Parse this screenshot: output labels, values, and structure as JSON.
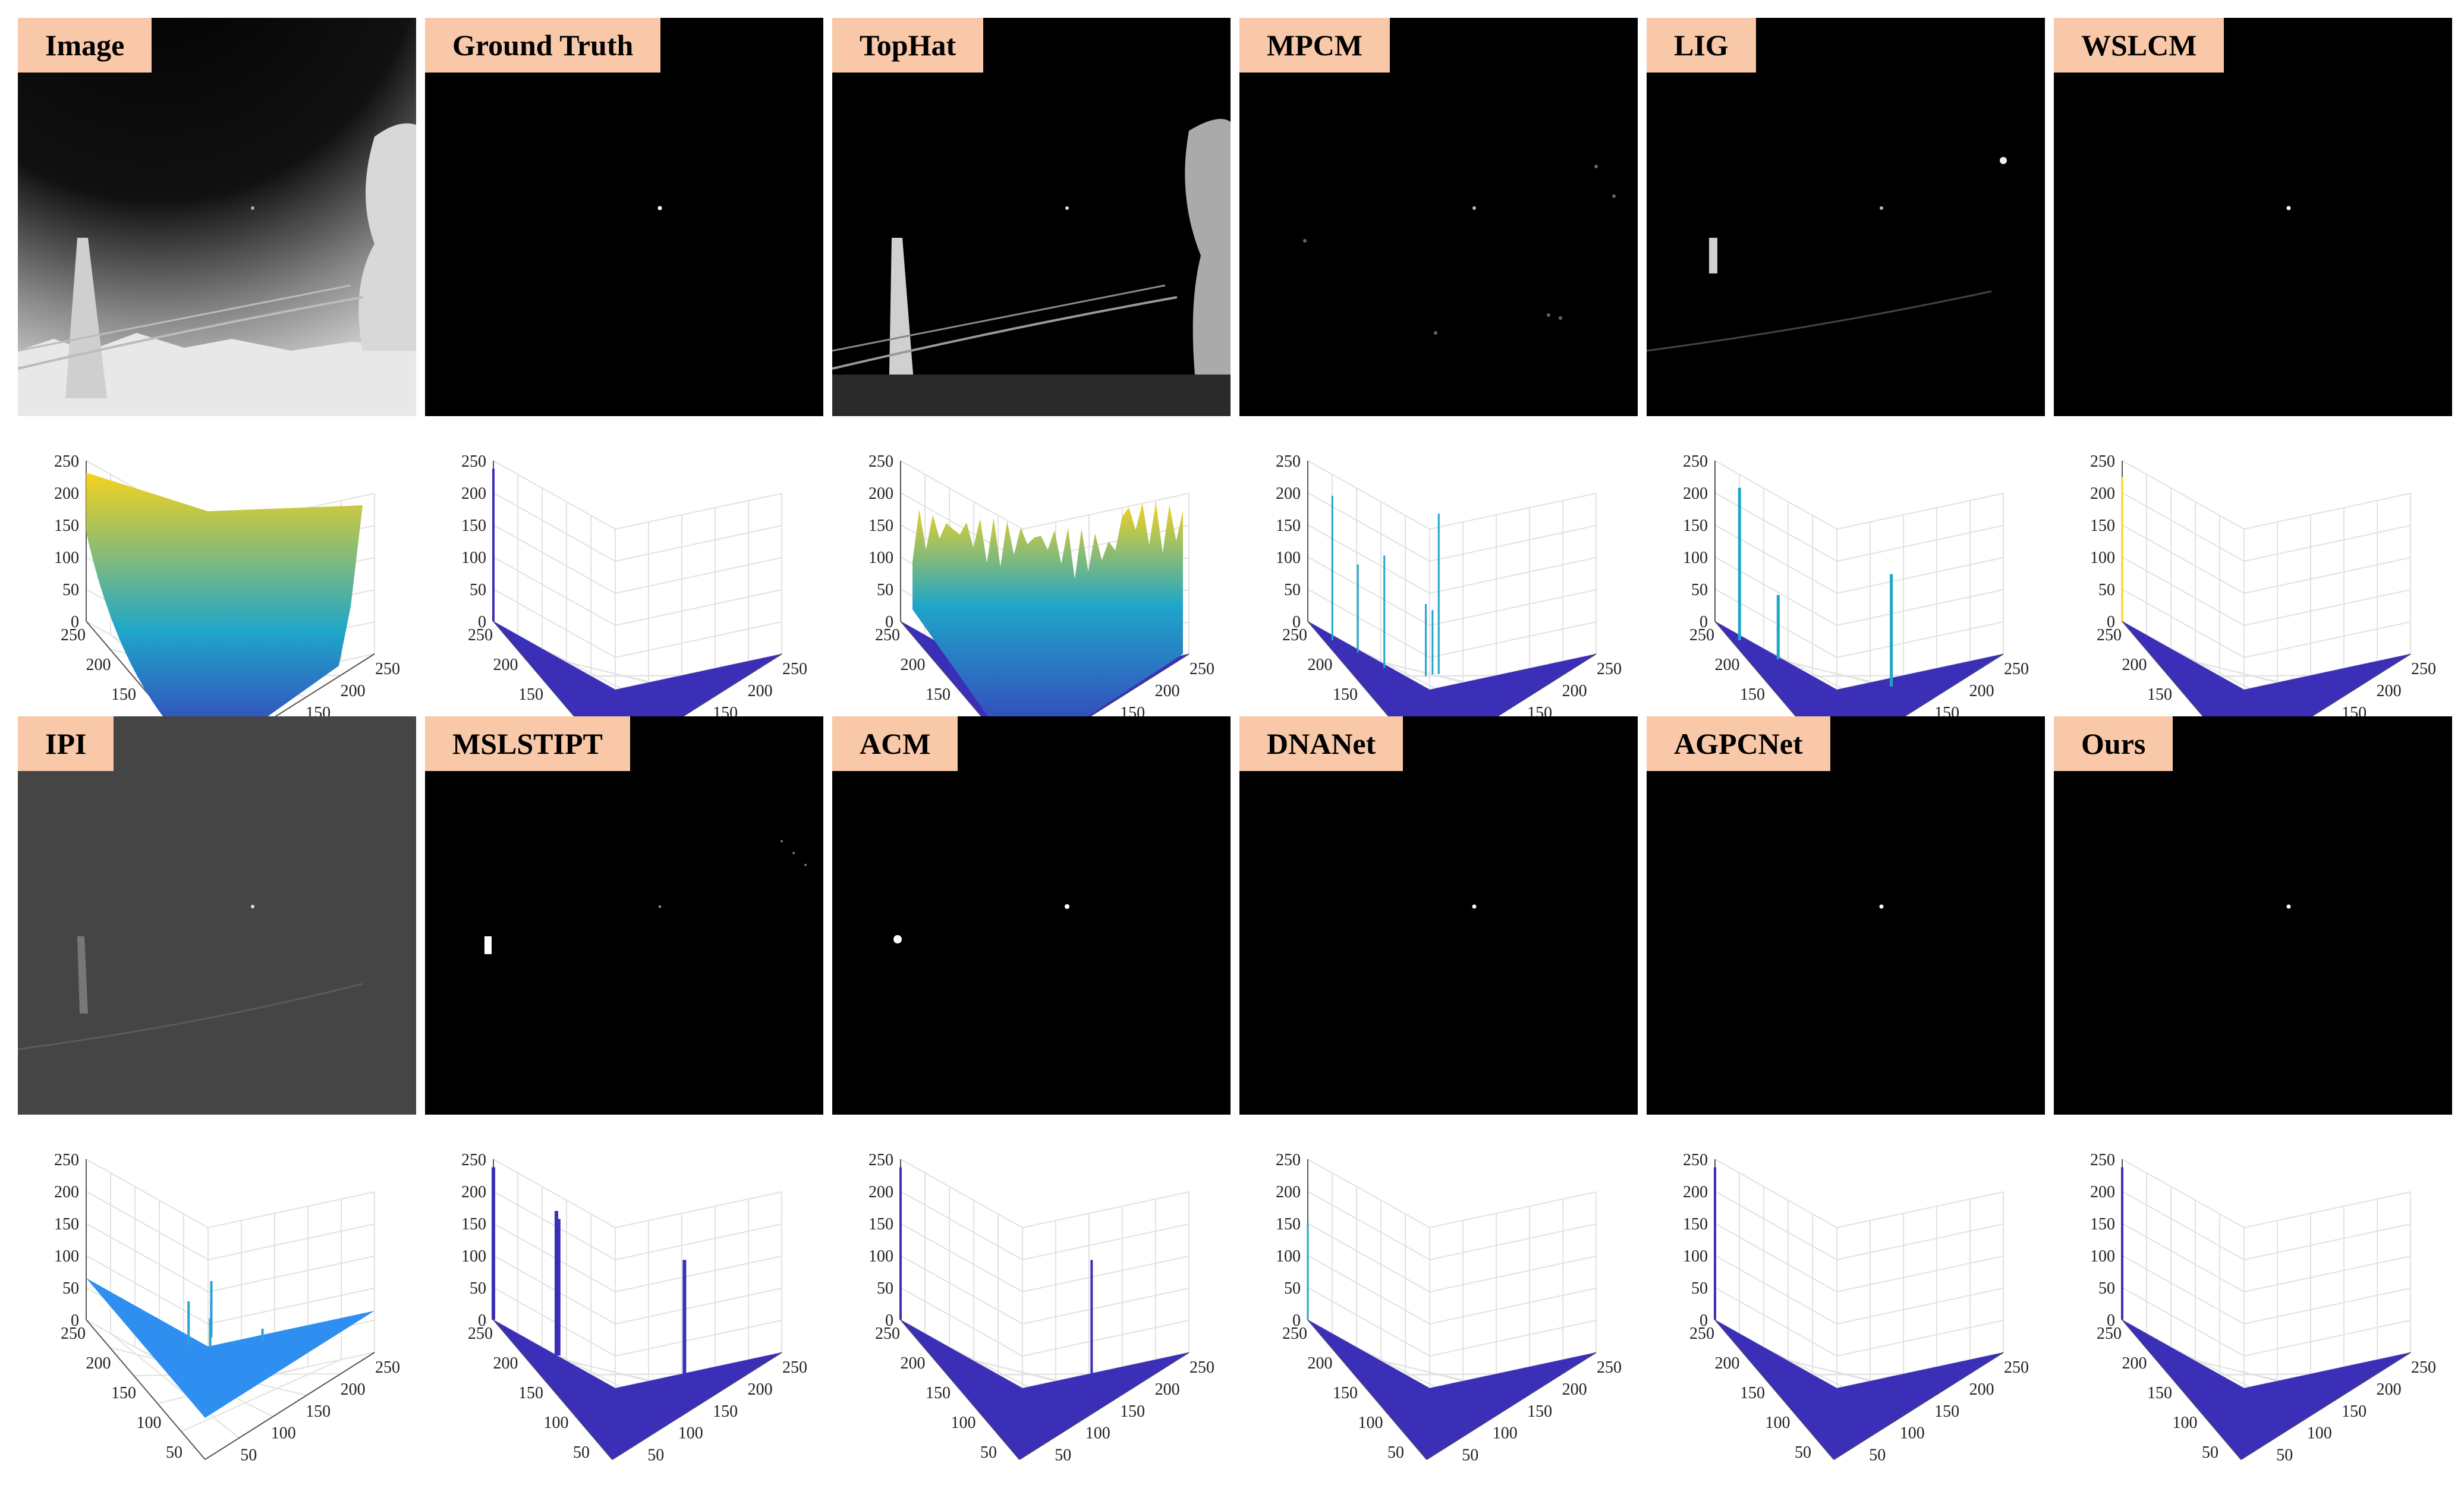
{
  "methods": [
    {
      "name": "Image",
      "scene": "image",
      "plot": "image"
    },
    {
      "name": "Ground Truth",
      "scene": "gt",
      "plot": "spike"
    },
    {
      "name": "TopHat",
      "scene": "tophat",
      "plot": "tophat"
    },
    {
      "name": "MPCM",
      "scene": "mpcm",
      "plot": "mpcm"
    },
    {
      "name": "LIG",
      "scene": "lig",
      "plot": "lig"
    },
    {
      "name": "WSLCM",
      "scene": "dot",
      "plot": "spike-thin"
    },
    {
      "name": "IPI",
      "scene": "ipi",
      "plot": "ipi"
    },
    {
      "name": "MSLSTIPT",
      "scene": "mslstipt",
      "plot": "mslstipt"
    },
    {
      "name": "ACM",
      "scene": "acm",
      "plot": "acm"
    },
    {
      "name": "DNANet",
      "scene": "dot",
      "plot": "spike-short"
    },
    {
      "name": "AGPCNet",
      "scene": "dot",
      "plot": "spike"
    },
    {
      "name": "Ours",
      "scene": "dot",
      "plot": "spike"
    }
  ],
  "axes": {
    "z_ticks": [
      "250",
      "200",
      "150",
      "100",
      "50",
      "0"
    ],
    "left_ticks": [
      "250",
      "200",
      "150",
      "100",
      "50"
    ],
    "right_ticks": [
      "50",
      "100",
      "150",
      "200",
      "250"
    ]
  },
  "colors": {
    "label_bg": "#f8c8a8",
    "surface_low": "#3b2fb8",
    "surface_mid": "#1fa6c9",
    "surface_high": "#f5d21e",
    "ipi_plane": "#2f8ff0"
  }
}
